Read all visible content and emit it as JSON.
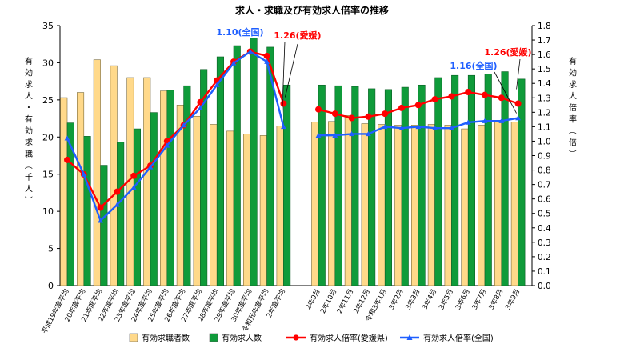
{
  "chart_data": {
    "type": "bar+line",
    "title": "求人・求職及び有効求人倍率の推移",
    "y_left_label": "有効求人・有効求職（千人）",
    "y_right_label": "有効求人倍率（倍）",
    "ylim_left": [
      0,
      35
    ],
    "ylim_right": [
      0.0,
      1.8
    ],
    "y_left_ticks": [
      "0",
      "5",
      "10",
      "15",
      "20",
      "25",
      "30",
      "35"
    ],
    "y_right_ticks": [
      "0.0",
      "0.1",
      "0.2",
      "0.3",
      "0.4",
      "0.5",
      "0.6",
      "0.7",
      "0.8",
      "0.9",
      "1.0",
      "1.1",
      "1.2",
      "1.3",
      "1.4",
      "1.5",
      "1.6",
      "1.7",
      "1.8"
    ],
    "groups": [
      {
        "categories": [
          "平成19年度平均",
          "20年度平均",
          "21年度平均",
          "22年度平均",
          "23年度平均",
          "24年度平均",
          "25年度平均",
          "26年度平均",
          "27年度平均",
          "28年度平均",
          "29年度平均",
          "30年度平均",
          "令和元年度平均",
          "2年度平均"
        ],
        "seekers": [
          25.3,
          26.0,
          30.4,
          29.6,
          28.0,
          28.0,
          26.2,
          24.3,
          22.8,
          21.7,
          20.8,
          20.4,
          20.2,
          21.5
        ],
        "openings": [
          21.9,
          20.1,
          16.2,
          19.3,
          21.1,
          23.3,
          26.3,
          26.9,
          29.1,
          30.8,
          32.3,
          33.3,
          32.1,
          27.0
        ],
        "ratio_ehime": [
          0.87,
          0.77,
          0.54,
          0.65,
          0.76,
          0.83,
          1.0,
          1.11,
          1.27,
          1.42,
          1.55,
          1.62,
          1.59,
          1.26
        ],
        "ratio_national": [
          1.02,
          0.77,
          0.45,
          0.56,
          0.68,
          0.82,
          0.97,
          1.11,
          1.23,
          1.39,
          1.54,
          1.62,
          1.55,
          1.1
        ]
      },
      {
        "categories": [
          "2年9月",
          "2年10月",
          "2年11月",
          "2年12月",
          "令和3年1月",
          "3年2月",
          "3年3月",
          "3年4月",
          "3年5月",
          "3年6月",
          "3年7月",
          "3年8月",
          "3年9月"
        ],
        "seekers": [
          22.0,
          22.1,
          22.9,
          21.8,
          21.7,
          21.6,
          21.6,
          21.7,
          21.6,
          21.1,
          21.6,
          22.2,
          22.0
        ],
        "openings": [
          27.0,
          26.9,
          26.8,
          26.5,
          26.4,
          26.7,
          27.0,
          28.0,
          28.3,
          28.3,
          28.5,
          28.8,
          27.8
        ],
        "ratio_ehime": [
          1.22,
          1.19,
          1.16,
          1.17,
          1.19,
          1.23,
          1.25,
          1.29,
          1.31,
          1.34,
          1.32,
          1.3,
          1.26
        ],
        "ratio_national": [
          1.04,
          1.04,
          1.05,
          1.05,
          1.1,
          1.09,
          1.1,
          1.09,
          1.09,
          1.13,
          1.14,
          1.14,
          1.16
        ]
      }
    ],
    "annotations": [
      {
        "text": "1.10(全国)",
        "series": "ratio_national"
      },
      {
        "text": "1.26(愛媛)",
        "series": "ratio_ehime"
      },
      {
        "text": "1.16(全国)",
        "series": "ratio_national"
      },
      {
        "text": "1.26(愛媛)",
        "series": "ratio_ehime"
      }
    ],
    "legend": [
      {
        "label": "有効求職者数",
        "color": "#ffd98a",
        "kind": "bar"
      },
      {
        "label": "有効求人数",
        "color": "#0f9b3a",
        "kind": "bar"
      },
      {
        "label": "有効求人倍率(愛媛県)",
        "color": "#ff0000",
        "kind": "line"
      },
      {
        "label": "有効求人倍率(全国)",
        "color": "#1f5fff",
        "kind": "line"
      }
    ],
    "legend_position": "bottom",
    "grid": false
  }
}
